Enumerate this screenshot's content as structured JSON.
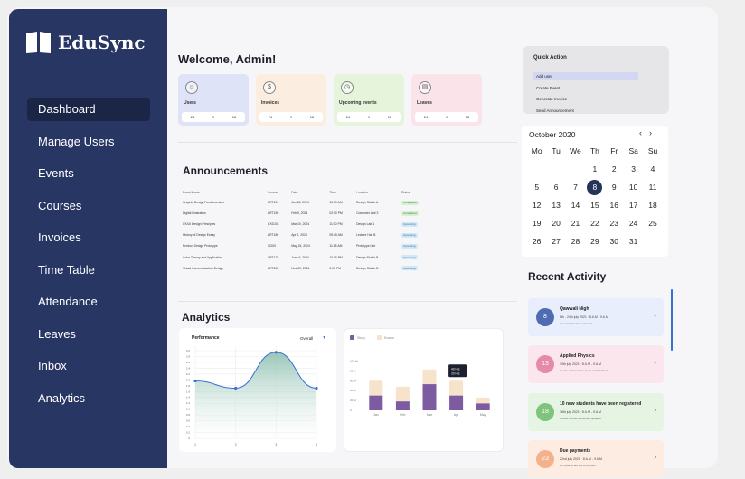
{
  "app": {
    "name": "EduSync"
  },
  "colors": {
    "sidebar": "#283664",
    "accent": "#273459",
    "primary_blue": "#3a6fd6",
    "bar_purple": "#7d5ba0",
    "bar_peach": "#f7e2cc"
  },
  "sidebar": {
    "items": [
      {
        "label": "Dashboard",
        "active": true
      },
      {
        "label": "Manage Users"
      },
      {
        "label": "Events"
      },
      {
        "label": "Courses"
      },
      {
        "label": "Invoices"
      },
      {
        "label": "Time Table"
      },
      {
        "label": "Attendance"
      },
      {
        "label": "Leaves"
      },
      {
        "label": "Inbox"
      },
      {
        "label": "Analytics"
      }
    ]
  },
  "welcome": "Welcome, Admin!",
  "stat_cards": [
    {
      "label": "Users",
      "icon": "users-icon",
      "color": "#dfe3f7",
      "stats": [
        "24",
        "9",
        "18"
      ]
    },
    {
      "label": "Invoices",
      "icon": "invoice-icon",
      "color": "#fbeee0",
      "stats": [
        "24",
        "9",
        "18"
      ]
    },
    {
      "label": "Upcoming events",
      "icon": "clock-icon",
      "color": "#e6f4db",
      "stats": [
        "24",
        "9",
        "18"
      ]
    },
    {
      "label": "Leaves",
      "icon": "clipboard-icon",
      "color": "#fbe3ea",
      "stats": [
        "24",
        "9",
        "18"
      ]
    }
  ],
  "announcements": {
    "title": "Announcements",
    "columns": [
      "Event Name",
      "Course",
      "Date",
      "Time",
      "Location",
      "Status"
    ],
    "rows": [
      [
        "Graphic Design Fundamentals",
        "ART101",
        "Jan 26, 2024",
        "10:00 AM",
        "Design Studio A",
        "Completed"
      ],
      [
        "Digital Illustration",
        "ART150",
        "Feb 9, 2024",
        "02:00 PM",
        "Computer Lab 3",
        "Completed"
      ],
      [
        "UX/UI Design Principles",
        "UXD101",
        "Mar 10, 2024",
        "11:00 PM",
        "Design Lab 1",
        "Upcoming"
      ],
      [
        "History of Design Essay",
        "ART180",
        "Apr 2, 2024",
        "09:45 AM",
        "Lecture Hall B",
        "Upcoming"
      ],
      [
        "Product Design Prototype",
        "ID200",
        "May 15, 2024",
        "11:15 AM",
        "Prototype Lab",
        "Upcoming"
      ],
      [
        "Color Theory and Application",
        "ART175",
        "June 6, 2024",
        "10:15 PM",
        "Design Studio B",
        "Upcoming"
      ],
      [
        "Visual Communication Design",
        "ART202",
        "Nov 30, 2024",
        "2:00 PM",
        "Design Studio B",
        "Upcoming"
      ]
    ]
  },
  "analytics": {
    "title": "Analytics",
    "line_chart": {
      "title": "Performance",
      "filter": "Overall"
    },
    "bar_chart": {
      "legend": [
        "Study",
        "Exams"
      ],
      "tooltip": [
        "40 Hrs",
        "20 Hrs"
      ]
    }
  },
  "chart_data": [
    {
      "type": "line",
      "title": "Performance",
      "x": [
        1,
        2,
        3,
        4
      ],
      "xticks": [
        "1",
        "2",
        "3",
        "4"
      ],
      "yticks": [
        "0",
        "0.2",
        "0.4",
        "0.6",
        "0.8",
        "1.0",
        "1.2",
        "1.4",
        "1.6",
        "1.8",
        "2.0",
        "2.2",
        "2.4",
        "2.6",
        "2.8",
        "3.0"
      ],
      "series": [
        {
          "values": [
            2.8,
            2.45,
            4.2,
            2.45
          ]
        }
      ],
      "ylim": [
        0,
        4.5
      ],
      "grid": true
    },
    {
      "type": "bar",
      "categories": [
        "Jan",
        "Feb",
        "Mar",
        "Apr",
        "May"
      ],
      "yticks": [
        "0",
        "20 Hr",
        "40 Hr",
        "60 Hr",
        "80 Hr",
        "100 Hr"
      ],
      "series": [
        {
          "name": "Study",
          "values": [
            30,
            18,
            53,
            30,
            14
          ]
        },
        {
          "name": "Exams",
          "values": [
            30,
            30,
            30,
            30,
            12
          ]
        }
      ],
      "ylim": [
        0,
        110
      ],
      "stacked": true,
      "legend": "top-left"
    }
  ],
  "quick_action": {
    "title": "Quick Action",
    "items": [
      {
        "label": "Add user",
        "selected": true
      },
      {
        "label": "Create Event"
      },
      {
        "label": "Generate Invoice"
      },
      {
        "label": "Send Announcement"
      }
    ]
  },
  "calendar": {
    "month": "October 2020",
    "days": [
      "Mo",
      "Tu",
      "We",
      "Th",
      "Fr",
      "Sa",
      "Su"
    ],
    "weeks": [
      [
        "",
        "",
        "",
        "1",
        "2",
        "3",
        "4"
      ],
      [
        "5",
        "6",
        "7",
        "8",
        "9",
        "10",
        "11"
      ],
      [
        "12",
        "13",
        "14",
        "15",
        "16",
        "17",
        "18"
      ],
      [
        "19",
        "20",
        "21",
        "22",
        "23",
        "24",
        "25"
      ],
      [
        "26",
        "27",
        "28",
        "29",
        "30",
        "31",
        ""
      ]
    ],
    "selected": "8",
    "prev": "‹",
    "next": "›"
  },
  "recent_activity": {
    "title": "Recent Activity",
    "items": [
      {
        "avatar": "8",
        "title": "Qawwali Nigh",
        "meta": "8th - 24th july 2021 · 8 A.M - 9 A.M",
        "desc": "An event has been created",
        "bg": "#e8eefb",
        "avbg": "#4f6bb2"
      },
      {
        "avatar": "13",
        "title": "Applied Physics",
        "meta": "10th july 2021 · 8 A.M - 9 A.M",
        "desc": "Course classes have been rescheduled",
        "bg": "#fbe6ee",
        "avbg": "#e58aa7"
      },
      {
        "avatar": "18",
        "title": "10 new students have been registered",
        "meta": "16th july 2021 · 8 A.M - 9 A.M",
        "desc": "Offices course enrollment updated",
        "bg": "#e6f5e3",
        "avbg": "#7ec47d"
      },
      {
        "avatar": "23",
        "title": "Due payments",
        "meta": "22nd july 2021 · 8 A.M - 9 A.M",
        "desc": "14 invoices are still to be paid",
        "bg": "#fcece1",
        "avbg": "#f3b28c"
      }
    ]
  }
}
